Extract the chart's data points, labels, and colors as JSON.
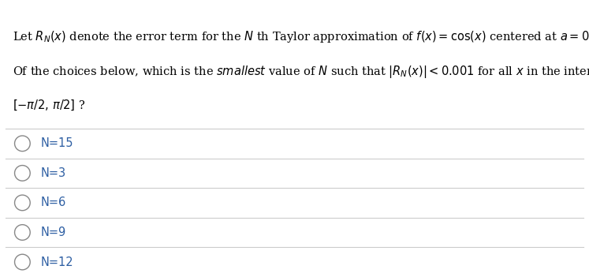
{
  "background_color": "#ffffff",
  "text_color": "#000000",
  "choice_color": "#2e5fa3",
  "separator_color": "#cccccc",
  "choices": [
    "N=15",
    "N=3",
    "N=6",
    "N=9",
    "N=12"
  ],
  "figwidth": 7.47,
  "figheight": 3.51,
  "dpi": 100,
  "font_size": 10.5,
  "choice_font_size": 10.5
}
